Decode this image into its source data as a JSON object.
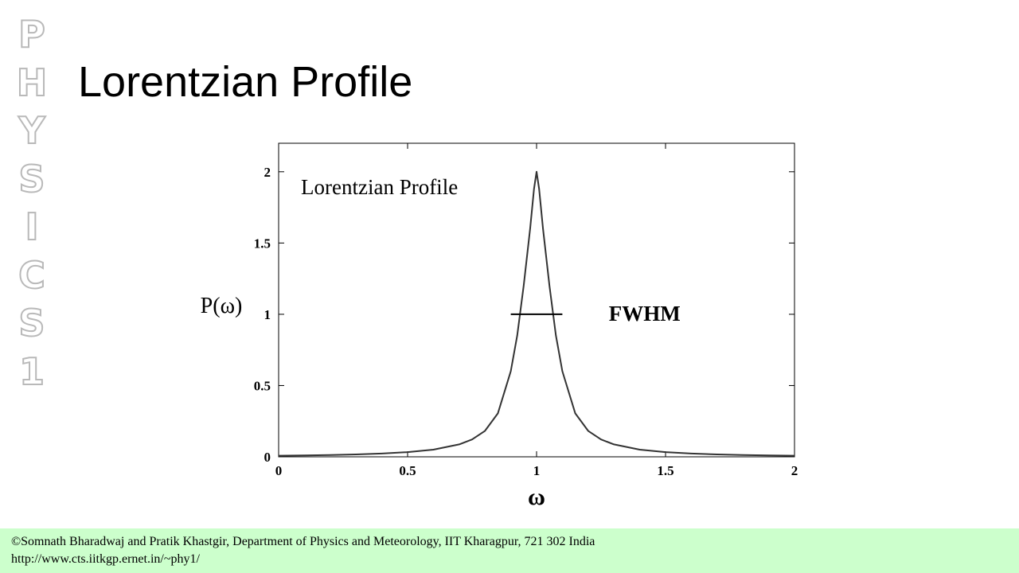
{
  "slide": {
    "title": "Lorentzian Profile",
    "watermark_letters": [
      "P",
      "H",
      "Y",
      "S",
      "I",
      "C",
      "S",
      "1"
    ],
    "footer_line1": "©Somnath Bharadwaj and Pratik Khastgir, Department of Physics and Meteorology, IIT Kharagpur, 721 302 India",
    "footer_line2": "http://www.cts.iitkgp.ernet.in/~phy1/"
  },
  "chart_data": {
    "type": "line",
    "title": "Lorentzian Profile",
    "xlabel": "ω",
    "ylabel": "P(ω)",
    "xlim": [
      0,
      2
    ],
    "ylim": [
      0,
      2.2
    ],
    "xticks": [
      "0",
      "0.5",
      "1",
      "1.5",
      "2"
    ],
    "yticks": [
      "0",
      "0.5",
      "1",
      "1.5",
      "2"
    ],
    "grid": false,
    "series": [
      {
        "x": [
          0,
          0.1,
          0.2,
          0.3,
          0.4,
          0.5,
          0.6,
          0.7,
          0.75,
          0.8,
          0.85,
          0.9,
          0.925,
          0.95,
          0.975,
          0.99,
          1.0,
          1.01,
          1.025,
          1.05,
          1.075,
          1.1,
          1.15,
          1.2,
          1.25,
          1.3,
          1.4,
          1.5,
          1.6,
          1.7,
          1.8,
          1.9,
          2.0
        ],
        "y": [
          0.008,
          0.01,
          0.013,
          0.017,
          0.023,
          0.033,
          0.05,
          0.087,
          0.122,
          0.182,
          0.305,
          0.6,
          0.851,
          1.2,
          1.6,
          1.88,
          2.0,
          1.88,
          1.6,
          1.2,
          0.851,
          0.6,
          0.305,
          0.182,
          0.122,
          0.087,
          0.05,
          0.033,
          0.023,
          0.017,
          0.013,
          0.01,
          0.008
        ]
      }
    ],
    "annotations": [
      {
        "text": "FWHM",
        "x": 1.28,
        "y": 1.0
      }
    ],
    "fwhm_segment": {
      "x1": 0.9,
      "x2": 1.1,
      "y": 1.0
    }
  }
}
